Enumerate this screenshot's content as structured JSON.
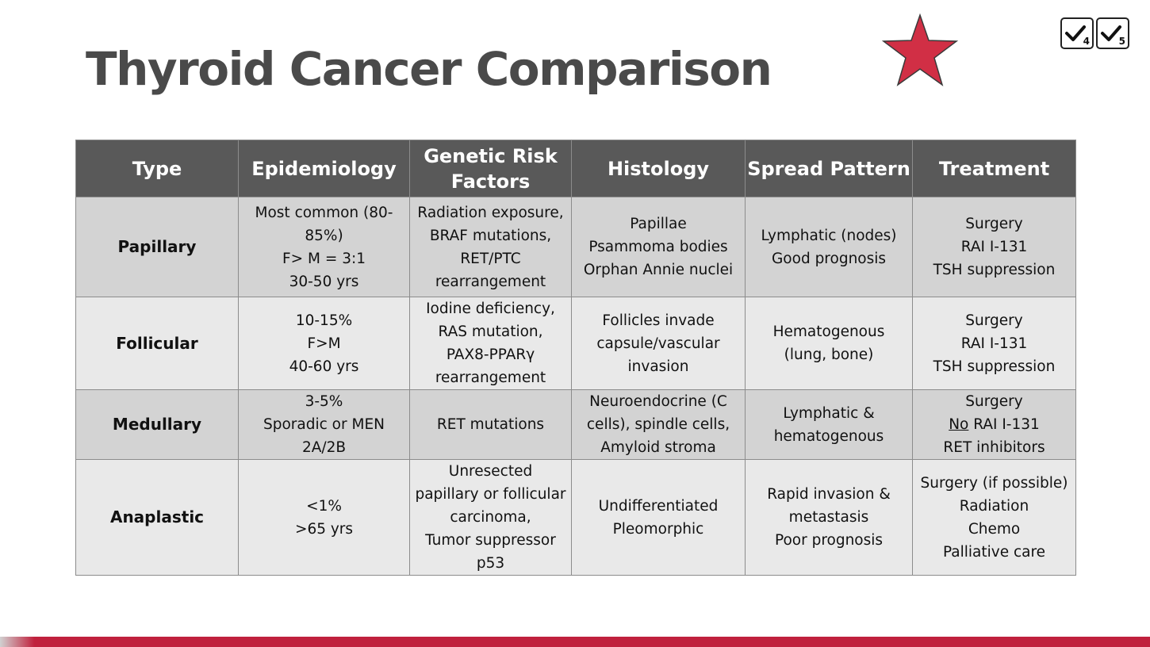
{
  "slide": {
    "title": "Thyroid Cancer Comparison",
    "star_color": "#d12f45",
    "checks": [
      {
        "number": "4"
      },
      {
        "number": "5"
      }
    ],
    "accent_bar_color": "#c0213d"
  },
  "table": {
    "headers": [
      "Type",
      "Epidemiology",
      "Genetic Risk Factors",
      "Histology",
      "Spread Pattern",
      "Treatment"
    ],
    "rows": [
      {
        "type": "Papillary",
        "epidemiology": "Most common (80-\n85%)\nF> M = 3:1\n30-50 yrs",
        "genetic": "Radiation exposure,\nBRAF mutations,\nRET/PTC\nrearrangement",
        "histology": "Papillae\nPsammoma bodies\nOrphan Annie nuclei",
        "spread": "Lymphatic (nodes)\nGood prognosis",
        "treatment": "Surgery\nRAI I-131\nTSH suppression"
      },
      {
        "type": "Follicular",
        "epidemiology": "10-15%\nF>M\n40-60 yrs",
        "genetic": "Iodine deficiency,\nRAS mutation,\nPAX8-PPARγ\nrearrangement",
        "histology": "Follicles invade\ncapsule/vascular\ninvasion",
        "spread": "Hematogenous\n(lung, bone)",
        "treatment": "Surgery\nRAI I-131\nTSH suppression"
      },
      {
        "type": "Medullary",
        "epidemiology": "3-5%\nSporadic or MEN\n2A/2B",
        "genetic": "RET mutations",
        "histology": "Neuroendocrine (C\ncells), spindle cells,\nAmyloid stroma",
        "spread": "Lymphatic &\nhematogenous",
        "treatment_line1": "Surgery",
        "treatment_no": "No",
        "treatment_rai": " RAI I-131",
        "treatment_line3": "RET inhibitors"
      },
      {
        "type": "Anaplastic",
        "epidemiology": "<1%\n>65 yrs",
        "genetic": "Unresected\npapillary or follicular\ncarcinoma,\nTumor suppressor\np53",
        "histology": "Undifferentiated\nPleomorphic",
        "spread": "Rapid invasion &\nmetastasis\nPoor prognosis",
        "treatment": "Surgery (if possible)\nRadiation\nChemo\nPalliative care"
      }
    ]
  }
}
